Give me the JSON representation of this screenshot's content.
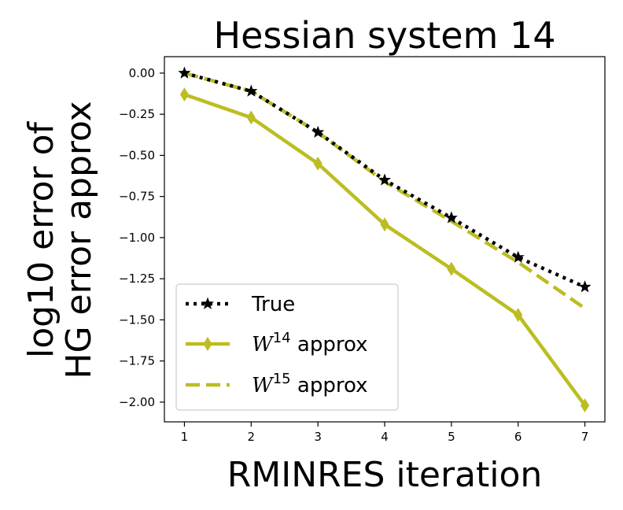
{
  "chart_data": {
    "type": "line",
    "title": "Hessian system 14",
    "xlabel": "RMINRES iteration",
    "ylabel_line1": "log10 error of",
    "ylabel_line2": "HG error approx",
    "xlim": [
      0.7,
      7.3
    ],
    "ylim": [
      -2.12,
      0.1
    ],
    "x_ticks": [
      1,
      2,
      3,
      4,
      5,
      6,
      7
    ],
    "x_tick_labels": [
      "1",
      "2",
      "3",
      "4",
      "5",
      "6",
      "7"
    ],
    "y_ticks": [
      0.0,
      -0.25,
      -0.5,
      -0.75,
      -1.0,
      -1.25,
      -1.5,
      -1.75,
      -2.0
    ],
    "y_tick_labels": [
      "0.00",
      "−0.25",
      "−0.50",
      "−0.75",
      "−1.00",
      "−1.25",
      "−1.50",
      "−1.75",
      "−2.00"
    ],
    "x": [
      1,
      2,
      3,
      4,
      5,
      6,
      7
    ],
    "grid": false,
    "legend_position": "bottom-left",
    "series": [
      {
        "legend_label": "True",
        "values": [
          0.0,
          -0.11,
          -0.36,
          -0.65,
          -0.88,
          -1.12,
          -1.3
        ],
        "color": "#000000",
        "style": "dotted",
        "marker": "star"
      },
      {
        "legend_label_prefix": "W",
        "legend_label_sup": "14",
        "legend_label_suffix": " approx",
        "values": [
          -0.13,
          -0.27,
          -0.55,
          -0.92,
          -1.19,
          -1.47,
          -2.02
        ],
        "color": "#bcbd22",
        "style": "solid",
        "marker": "diamond"
      },
      {
        "legend_label_prefix": "W",
        "legend_label_sup": "15",
        "legend_label_suffix": " approx",
        "values": [
          0.0,
          -0.11,
          -0.36,
          -0.66,
          -0.9,
          -1.15,
          -1.43
        ],
        "color": "#bcbd22",
        "style": "dashed",
        "marker": "none"
      }
    ]
  }
}
